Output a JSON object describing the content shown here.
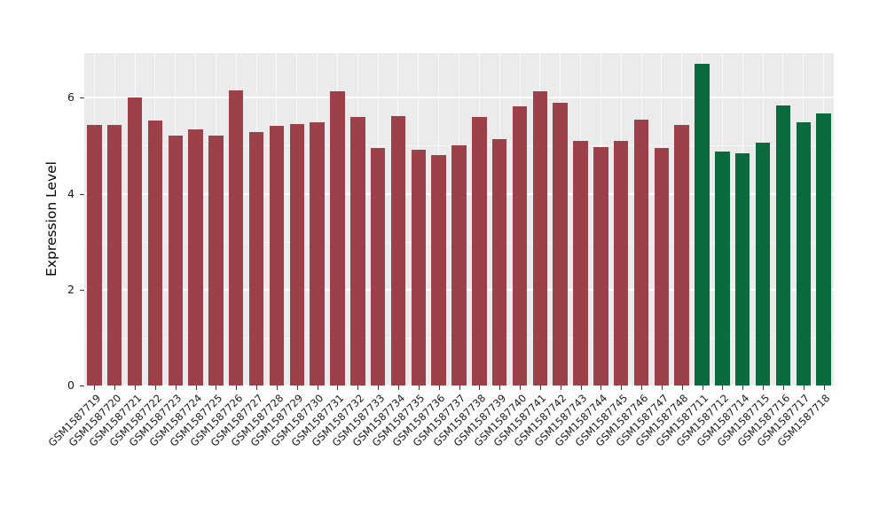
{
  "chart_data": {
    "type": "bar",
    "title": "",
    "xlabel": "",
    "ylabel": "Expression Level",
    "ylim": [
      0,
      6.93
    ],
    "yticks": [
      0,
      2,
      4,
      6
    ],
    "yminor": [
      1,
      3,
      5
    ],
    "grid": "white major and minor horizontal lines, white vertical lines at each category, gray panel background",
    "legend": "none",
    "panel_background": "#EBEBEB",
    "grid_color": "#FFFFFF",
    "axis_text_color": "#1A1A1A",
    "group_colors": {
      "group_1_maroon": "#9C4049",
      "group_2_green": "#0C6B3D"
    },
    "categories": [
      "GSM1587719",
      "GSM1587720",
      "GSM1587721",
      "GSM1587722",
      "GSM1587723",
      "GSM1587724",
      "GSM1587725",
      "GSM1587726",
      "GSM1587727",
      "GSM1587728",
      "GSM1587729",
      "GSM1587730",
      "GSM1587731",
      "GSM1587732",
      "GSM1587733",
      "GSM1587734",
      "GSM1587735",
      "GSM1587736",
      "GSM1587737",
      "GSM1587738",
      "GSM1587739",
      "GSM1587740",
      "GSM1587741",
      "GSM1587742",
      "GSM1587743",
      "GSM1587744",
      "GSM1587745",
      "GSM1587746",
      "GSM1587747",
      "GSM1587748",
      "GSM1587711",
      "GSM1587712",
      "GSM1587714",
      "GSM1587715",
      "GSM1587716",
      "GSM1587717",
      "GSM1587718"
    ],
    "values": [
      5.43,
      5.43,
      6.0,
      5.52,
      5.21,
      5.34,
      5.21,
      6.15,
      5.28,
      5.41,
      5.45,
      5.49,
      6.13,
      5.6,
      4.95,
      5.62,
      4.92,
      4.8,
      5.01,
      5.6,
      5.14,
      5.82,
      6.13,
      5.9,
      5.1,
      4.97,
      5.1,
      5.54,
      4.95,
      5.43,
      6.7,
      4.88,
      4.84,
      5.06,
      5.84,
      5.48,
      5.68
    ],
    "colors": [
      "#9C4049",
      "#9C4049",
      "#9C4049",
      "#9C4049",
      "#9C4049",
      "#9C4049",
      "#9C4049",
      "#9C4049",
      "#9C4049",
      "#9C4049",
      "#9C4049",
      "#9C4049",
      "#9C4049",
      "#9C4049",
      "#9C4049",
      "#9C4049",
      "#9C4049",
      "#9C4049",
      "#9C4049",
      "#9C4049",
      "#9C4049",
      "#9C4049",
      "#9C4049",
      "#9C4049",
      "#9C4049",
      "#9C4049",
      "#9C4049",
      "#9C4049",
      "#9C4049",
      "#9C4049",
      "#0C6B3D",
      "#0C6B3D",
      "#0C6B3D",
      "#0C6B3D",
      "#0C6B3D",
      "#0C6B3D",
      "#0C6B3D"
    ]
  }
}
